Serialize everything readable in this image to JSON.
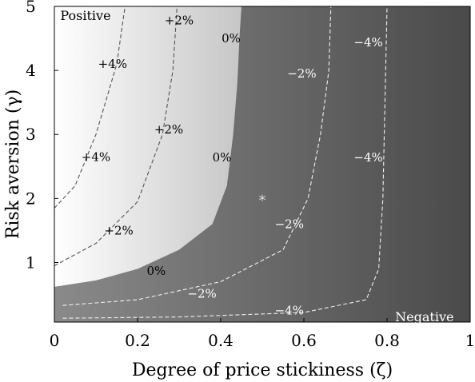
{
  "chart_data": {
    "type": "heatmap",
    "title": "",
    "xlabel": "Degree of price stickiness (ζ)",
    "ylabel": "Risk aversion (γ)",
    "xlim": [
      0,
      1
    ],
    "ylim": [
      0.07,
      5
    ],
    "x_ticks": [
      {
        "value": 0,
        "label": "0"
      },
      {
        "value": 0.2,
        "label": "0.2"
      },
      {
        "value": 0.4,
        "label": "0.4"
      },
      {
        "value": 0.6,
        "label": "0.6"
      },
      {
        "value": 0.8,
        "label": "0.8"
      },
      {
        "value": 1,
        "label": "1"
      }
    ],
    "y_ticks": [
      {
        "value": 1,
        "label": "1"
      },
      {
        "value": 2,
        "label": "2"
      },
      {
        "value": 3,
        "label": "3"
      },
      {
        "value": 4,
        "label": "4"
      },
      {
        "value": 5,
        "label": "5"
      }
    ],
    "region_labels": [
      {
        "text": "Positive",
        "x": 0.075,
        "y": 4.86,
        "color": "#000000"
      },
      {
        "text": "Negative",
        "x": 0.89,
        "y": 0.16,
        "color": "#ffffff"
      }
    ],
    "zero_boundary": [
      [
        0,
        0.62
      ],
      [
        0.1,
        0.72
      ],
      [
        0.2,
        0.9
      ],
      [
        0.3,
        1.2
      ],
      [
        0.38,
        1.6
      ],
      [
        0.415,
        2.2
      ],
      [
        0.43,
        3.0
      ],
      [
        0.44,
        3.8
      ],
      [
        0.446,
        4.6
      ],
      [
        0.45,
        5.0
      ]
    ],
    "contours": [
      {
        "level": "+4%",
        "points": [
          [
            0.0,
            1.85
          ],
          [
            0.05,
            2.2
          ],
          [
            0.1,
            3.0
          ],
          [
            0.15,
            4.1
          ],
          [
            0.17,
            5.0
          ]
        ]
      },
      {
        "level": "+2%",
        "points": [
          [
            0.0,
            0.95
          ],
          [
            0.1,
            1.3
          ],
          [
            0.2,
            1.95
          ],
          [
            0.26,
            3.0
          ],
          [
            0.285,
            4.0
          ],
          [
            0.295,
            5.0
          ]
        ]
      },
      {
        "level": "−2%",
        "points": [
          [
            0.02,
            0.33
          ],
          [
            0.2,
            0.42
          ],
          [
            0.4,
            0.7
          ],
          [
            0.55,
            1.2
          ],
          [
            0.61,
            2.0
          ],
          [
            0.64,
            3.0
          ],
          [
            0.66,
            4.0
          ],
          [
            0.665,
            5.0
          ]
        ]
      },
      {
        "level": "−4%",
        "points": [
          [
            0.02,
            0.13
          ],
          [
            0.3,
            0.15
          ],
          [
            0.6,
            0.22
          ],
          [
            0.75,
            0.42
          ],
          [
            0.78,
            0.9
          ],
          [
            0.79,
            2.0
          ],
          [
            0.795,
            3.5
          ],
          [
            0.8,
            5.0
          ]
        ]
      }
    ],
    "contour_labels": [
      {
        "text": "+4%",
        "x": 0.14,
        "y": 4.1,
        "color": "#000000"
      },
      {
        "text": "+4%",
        "x": 0.1,
        "y": 2.65,
        "color": "#000000"
      },
      {
        "text": "+2%",
        "x": 0.3,
        "y": 4.78,
        "color": "#000000"
      },
      {
        "text": "+2%",
        "x": 0.275,
        "y": 3.08,
        "color": "#000000"
      },
      {
        "text": "+2%",
        "x": 0.155,
        "y": 1.5,
        "color": "#000000"
      },
      {
        "text": "0%",
        "x": 0.425,
        "y": 4.5,
        "color": "#000000"
      },
      {
        "text": "0%",
        "x": 0.403,
        "y": 2.64,
        "color": "#000000"
      },
      {
        "text": "0%",
        "x": 0.245,
        "y": 0.87,
        "color": "#000000"
      },
      {
        "text": "−2%",
        "x": 0.595,
        "y": 3.95,
        "color": "#ffffff"
      },
      {
        "text": "−2%",
        "x": 0.565,
        "y": 1.6,
        "color": "#ffffff"
      },
      {
        "text": "−2%",
        "x": 0.355,
        "y": 0.51,
        "color": "#ffffff"
      },
      {
        "text": "−4%",
        "x": 0.755,
        "y": 4.44,
        "color": "#ffffff"
      },
      {
        "text": "−4%",
        "x": 0.755,
        "y": 2.64,
        "color": "#ffffff"
      },
      {
        "text": "−4%",
        "x": 0.565,
        "y": 0.25,
        "color": "#ffffff"
      }
    ],
    "marker": {
      "symbol": "*",
      "x": 0.5,
      "y": 2.0,
      "color": "#dddddd"
    },
    "colors": {
      "positive_left": "#ffffff",
      "positive_right": "#c6c6c6",
      "negative_left": "#8a8a8a",
      "negative_right": "#4a4a4a",
      "contour": "#555555",
      "contour_negative": "#f0f0f0"
    }
  }
}
